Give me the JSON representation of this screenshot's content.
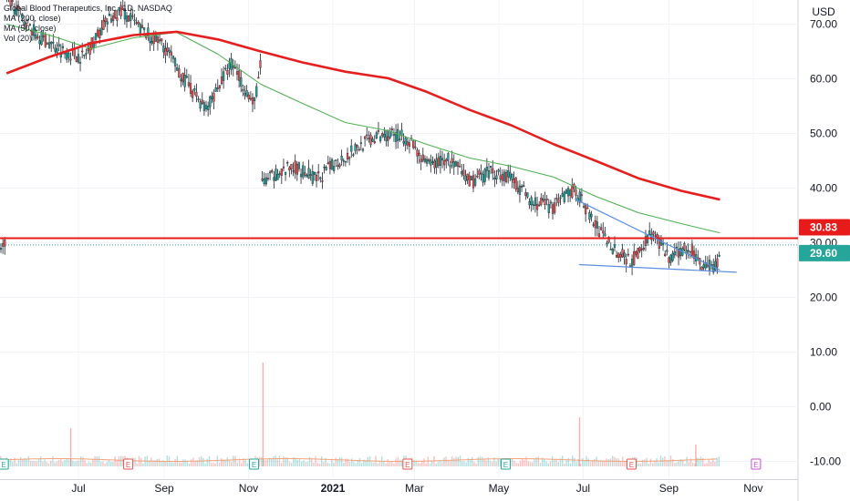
{
  "legend": {
    "symbol": "Global Blood Therapeutics, Inc., 1D, NASDAQ",
    "ma1": "MA (200, close)",
    "ma2": "MA (50, close)",
    "vol": "Vol (20)"
  },
  "currency": "USD",
  "chart_data": {
    "type": "candlestick",
    "title": "",
    "x_ticks": [
      "Jul",
      "Sep",
      "Nov",
      "2021",
      "Mar",
      "May",
      "Jul",
      "Sep",
      "Nov"
    ],
    "y_ticks": [
      "70.00",
      "60.00",
      "50.00",
      "40.00",
      "30.00",
      "20.00",
      "10.00",
      "0.00",
      "-10.00"
    ],
    "ylim": [
      -11,
      74
    ],
    "grid": true,
    "price_tags": [
      {
        "label": "30.83",
        "value": 30.83,
        "color": "#e81b1b"
      },
      {
        "label": "29.60",
        "value": 29.6,
        "color": "#26a69a"
      }
    ],
    "horizontal_line": {
      "value": 30.83,
      "color": "#e81b1b"
    },
    "trendlines": [
      {
        "from": [
          "2021-06-25",
          38.0
        ],
        "to": [
          "2021-10-08",
          25.0
        ],
        "color": "#5b8ee0"
      },
      {
        "from": [
          "2021-06-28",
          26.0
        ],
        "to": [
          "2021-10-20",
          24.6
        ],
        "color": "#5b8ee0"
      }
    ],
    "ma_200": [
      [
        "2020-05-10",
        61.0
      ],
      [
        "2020-06-10",
        64.0
      ],
      [
        "2020-07-10",
        66.5
      ],
      [
        "2020-08-10",
        68.0
      ],
      [
        "2020-09-10",
        68.6
      ],
      [
        "2020-10-10",
        67.2
      ],
      [
        "2020-11-10",
        65.0
      ],
      [
        "2020-12-10",
        63.0
      ],
      [
        "2021-01-10",
        61.3
      ],
      [
        "2021-02-10",
        60.1
      ],
      [
        "2021-03-10",
        57.6
      ],
      [
        "2021-04-10",
        54.3
      ],
      [
        "2021-05-10",
        51.5
      ],
      [
        "2021-06-10",
        48.0
      ],
      [
        "2021-07-10",
        45.0
      ],
      [
        "2021-08-10",
        41.8
      ],
      [
        "2021-09-10",
        39.5
      ],
      [
        "2021-10-08",
        37.9
      ]
    ],
    "ma_50": [
      [
        "2020-05-10",
        70.0
      ],
      [
        "2020-06-10",
        68.0
      ],
      [
        "2020-07-10",
        65.5
      ],
      [
        "2020-08-10",
        67.5
      ],
      [
        "2020-09-10",
        68.5
      ],
      [
        "2020-10-10",
        64.5
      ],
      [
        "2020-11-10",
        59.0
      ],
      [
        "2020-12-10",
        55.5
      ],
      [
        "2021-01-10",
        52.0
      ],
      [
        "2021-02-10",
        50.5
      ],
      [
        "2021-03-10",
        48.0
      ],
      [
        "2021-04-10",
        45.5
      ],
      [
        "2021-05-10",
        44.0
      ],
      [
        "2021-06-10",
        42.0
      ],
      [
        "2021-07-10",
        38.5
      ],
      [
        "2021-08-10",
        35.5
      ],
      [
        "2021-09-10",
        33.5
      ],
      [
        "2021-10-08",
        31.8
      ]
    ],
    "price_path": [
      [
        "2020-05-10",
        75.0
      ],
      [
        "2020-06-01",
        68.0
      ],
      [
        "2020-06-20",
        65.0
      ],
      [
        "2020-07-05",
        64.0
      ],
      [
        "2020-07-20",
        70.0
      ],
      [
        "2020-08-01",
        72.5
      ],
      [
        "2020-08-15",
        69.0
      ],
      [
        "2020-09-01",
        66.0
      ],
      [
        "2020-09-15",
        60.0
      ],
      [
        "2020-10-01",
        54.5
      ],
      [
        "2020-10-20",
        63.0
      ],
      [
        "2020-11-05",
        55.0
      ],
      [
        "2020-11-10",
        63.0
      ],
      [
        "2020-11-11",
        40.5
      ],
      [
        "2020-11-20",
        42.5
      ],
      [
        "2020-12-05",
        44.0
      ],
      [
        "2020-12-20",
        41.5
      ],
      [
        "2021-01-05",
        45.0
      ],
      [
        "2021-01-25",
        48.5
      ],
      [
        "2021-02-10",
        50.0
      ],
      [
        "2021-02-25",
        49.0
      ],
      [
        "2021-03-10",
        44.0
      ],
      [
        "2021-03-25",
        45.5
      ],
      [
        "2021-04-10",
        41.0
      ],
      [
        "2021-04-25",
        43.0
      ],
      [
        "2021-05-10",
        42.0
      ],
      [
        "2021-05-25",
        37.5
      ],
      [
        "2021-06-10",
        36.5
      ],
      [
        "2021-06-25",
        40.0
      ],
      [
        "2021-07-10",
        33.0
      ],
      [
        "2021-07-25",
        28.5
      ],
      [
        "2021-08-05",
        26.5
      ],
      [
        "2021-08-20",
        32.0
      ],
      [
        "2021-09-01",
        27.0
      ],
      [
        "2021-09-15",
        29.5
      ],
      [
        "2021-09-25",
        26.0
      ],
      [
        "2021-10-06",
        25.8
      ],
      [
        "2021-10-08",
        29.6
      ]
    ],
    "volume_spikes": [
      [
        "2020-06-25",
        7
      ],
      [
        "2020-11-11",
        19
      ],
      [
        "2021-06-28",
        9
      ],
      [
        "2021-09-20",
        4
      ]
    ],
    "earnings_markers": [
      "2020-05-08",
      "2020-08-06",
      "2020-11-05",
      "2021-02-24",
      "2021-05-06",
      "2021-08-05",
      "2021-11-03"
    ]
  }
}
